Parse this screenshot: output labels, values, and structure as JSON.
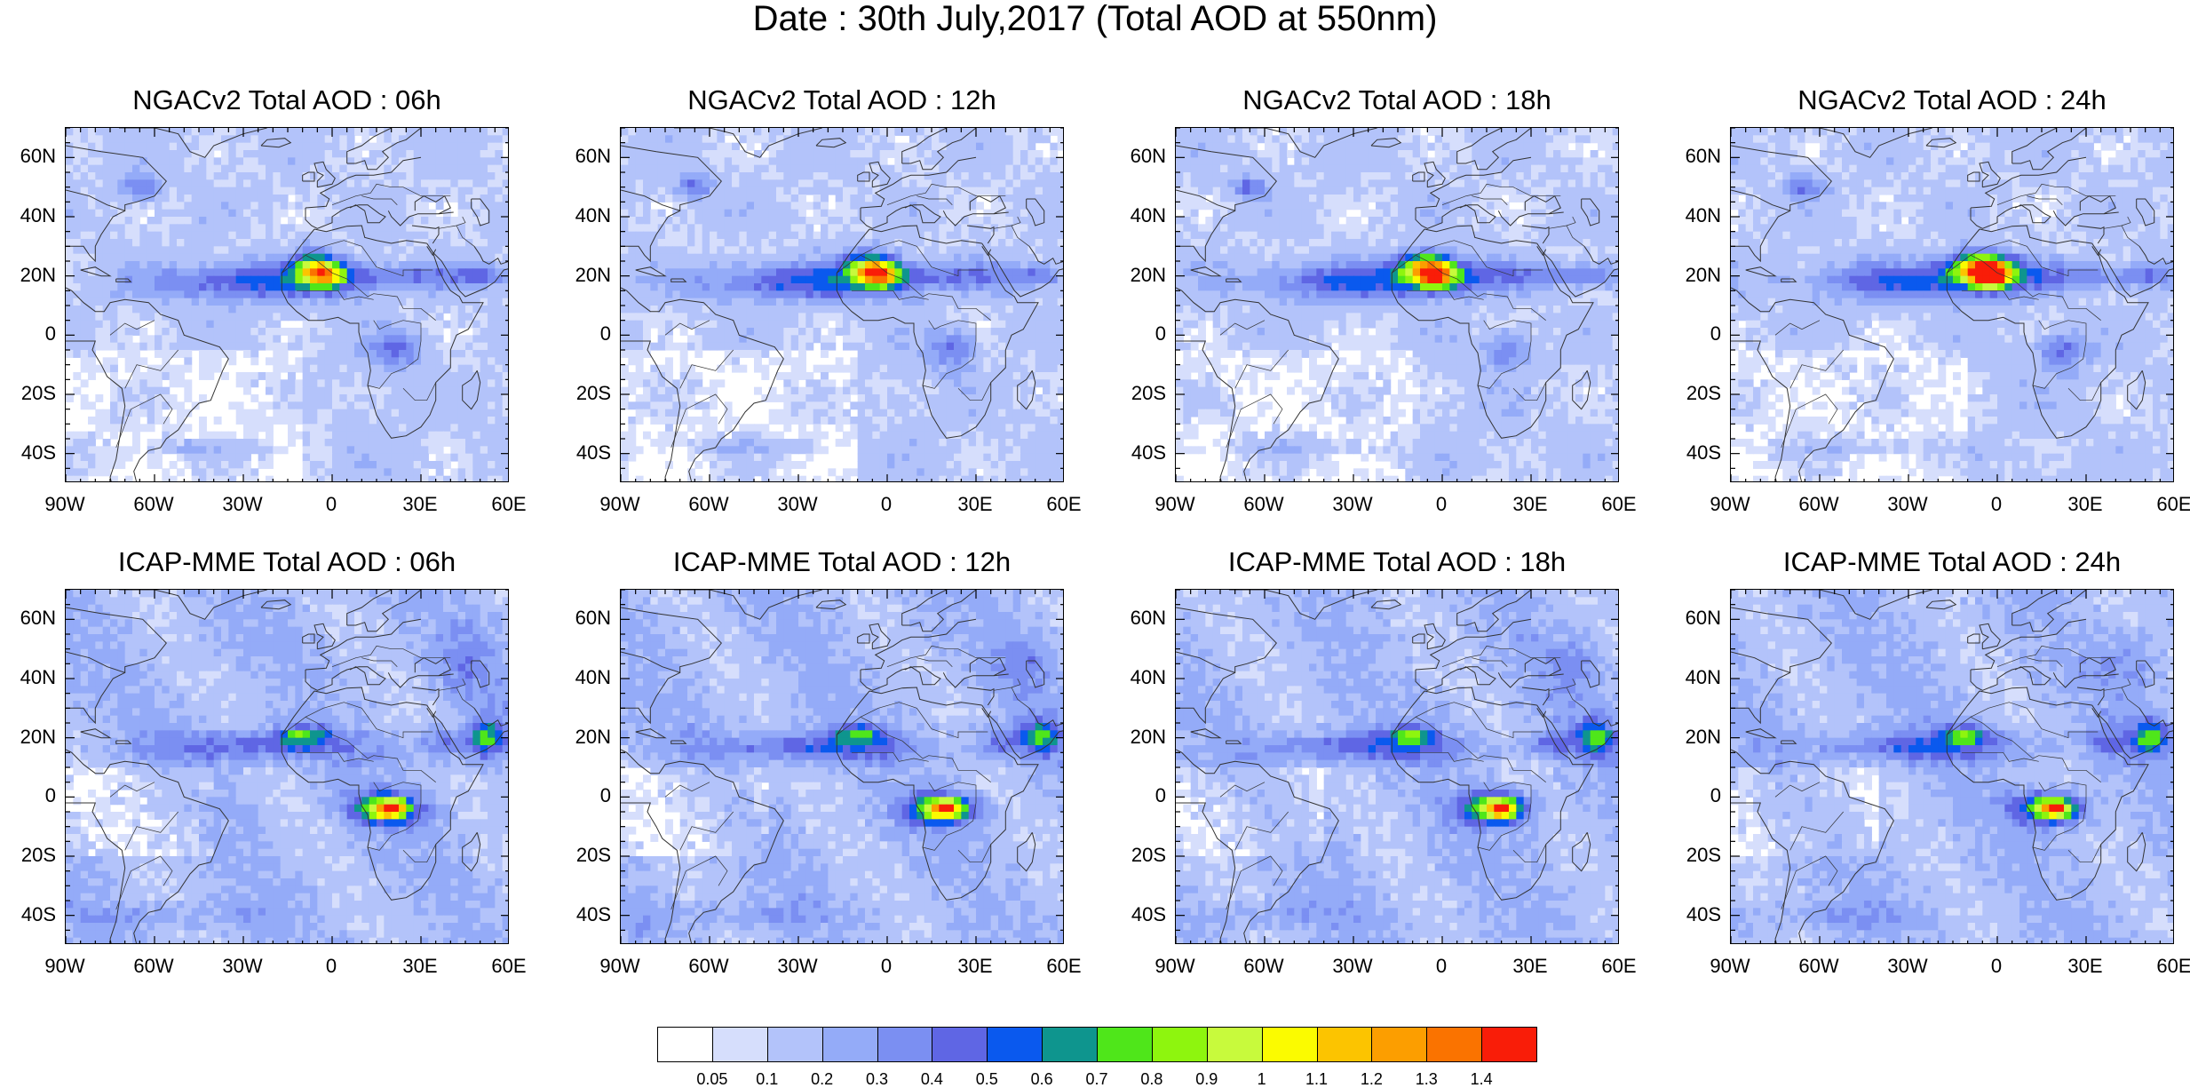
{
  "title": "Date : 30th July,2017 (Total AOD at 550nm)",
  "axes": {
    "lat_ticks": [
      "60N",
      "40N",
      "20N",
      "0",
      "20S",
      "40S"
    ],
    "lat_values": [
      60,
      40,
      20,
      0,
      -20,
      -40
    ],
    "lon_ticks": [
      "90W",
      "60W",
      "30W",
      "0",
      "30E",
      "60E"
    ],
    "lon_values": [
      -90,
      -60,
      -30,
      0,
      30,
      60
    ],
    "lat_range": [
      -50,
      70
    ],
    "lon_range": [
      -90,
      60
    ]
  },
  "panels": [
    {
      "title": "NGACv2 Total AOD : 06h",
      "model": "NGACv2",
      "hour": "06h"
    },
    {
      "title": "NGACv2 Total AOD : 12h",
      "model": "NGACv2",
      "hour": "12h"
    },
    {
      "title": "NGACv2 Total AOD : 18h",
      "model": "NGACv2",
      "hour": "18h"
    },
    {
      "title": "NGACv2 Total AOD : 24h",
      "model": "NGACv2",
      "hour": "24h"
    },
    {
      "title": "ICAP-MME Total AOD : 06h",
      "model": "ICAP-MME",
      "hour": "06h"
    },
    {
      "title": "ICAP-MME Total AOD : 12h",
      "model": "ICAP-MME",
      "hour": "12h"
    },
    {
      "title": "ICAP-MME Total AOD : 18h",
      "model": "ICAP-MME",
      "hour": "18h"
    },
    {
      "title": "ICAP-MME Total AOD : 24h",
      "model": "ICAP-MME",
      "hour": "24h"
    }
  ],
  "colorbar": {
    "labels": [
      "0.05",
      "0.1",
      "0.2",
      "0.3",
      "0.4",
      "0.5",
      "0.6",
      "0.7",
      "0.8",
      "0.9",
      "1",
      "1.1",
      "1.2",
      "1.3",
      "1.4"
    ],
    "colors": [
      "#ffffff",
      "#d6defc",
      "#b3c3fa",
      "#94abf8",
      "#7b8ff2",
      "#5f66e4",
      "#0a59ee",
      "#0e958e",
      "#4fe61a",
      "#8ef50e",
      "#c8fa3c",
      "#fbfb00",
      "#fcc400",
      "#fc9e00",
      "#fa7300",
      "#f91d08"
    ]
  }
}
